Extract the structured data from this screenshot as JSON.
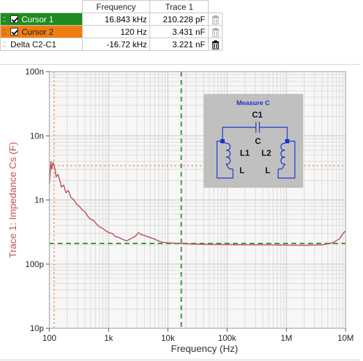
{
  "table": {
    "headers": [
      "Frequency",
      "Trace 1"
    ],
    "rows": [
      {
        "name": "Cursor 1",
        "frequency": "16.843 kHz",
        "trace": "210.228 pF",
        "color": "#1e8c1e",
        "checked": true
      },
      {
        "name": "Cursor 2",
        "frequency": "120 Hz",
        "trace": "3.431 nF",
        "color": "#f07d10",
        "checked": true
      },
      {
        "name": "Delta C2-C1",
        "frequency": "-16.72 kHz",
        "trace": "3.221 nF",
        "color": "#ffffff",
        "checked": false
      }
    ],
    "icons": {
      "delete": "trash-icon",
      "drag": "grip-icon",
      "check": "checkbox-icon"
    }
  },
  "chart_data": {
    "type": "line",
    "x_scale": "log",
    "y_scale": "log",
    "xlim": [
      100,
      10000000
    ],
    "ylim": [
      1e-11,
      1e-07
    ],
    "xlabel": "Frequency (Hz)",
    "ylabel": "Trace 1: Impedance Cs (F)",
    "x_ticks": [
      {
        "value": 100,
        "label": "100"
      },
      {
        "value": 1000,
        "label": "1k"
      },
      {
        "value": 10000,
        "label": "10k"
      },
      {
        "value": 100000,
        "label": "100k"
      },
      {
        "value": 1000000,
        "label": "1M"
      },
      {
        "value": 10000000,
        "label": "10M"
      }
    ],
    "y_ticks": [
      {
        "value": 1e-07,
        "label": "100n"
      },
      {
        "value": 1e-08,
        "label": "10n"
      },
      {
        "value": 1e-09,
        "label": "1n"
      },
      {
        "value": 1e-10,
        "label": "100p"
      },
      {
        "value": 1e-11,
        "label": "10p"
      }
    ],
    "grid": true,
    "series": [
      {
        "color": "#c0505a",
        "x": [
          100,
          103,
          106,
          110,
          115,
          120,
          125,
          130,
          140,
          150,
          160,
          175,
          190,
          210,
          230,
          260,
          290,
          320,
          360,
          400,
          450,
          500,
          560,
          630,
          700,
          800,
          900,
          1000,
          1150,
          1300,
          1500,
          1700,
          2000,
          2400,
          2800,
          3200,
          3500,
          4000,
          5000,
          6000,
          7000,
          8000,
          10000,
          13000,
          16800,
          20000,
          30000,
          50000,
          100000,
          200000,
          500000,
          1000000,
          2000000,
          4000000,
          6000000,
          8000000,
          9000000,
          10000000
        ],
        "y": [
          1.8e-09,
          2.6e-09,
          4e-09,
          3e-09,
          3.8e-09,
          3.43e-09,
          3e-09,
          2.3e-09,
          2.5e-09,
          2e-09,
          1.6e-09,
          1.7e-09,
          1.3e-09,
          1.4e-09,
          1.1e-09,
          1e-09,
          8.5e-10,
          8e-10,
          7e-10,
          6.5e-10,
          5.5e-10,
          5e-10,
          4.8e-10,
          4.2e-10,
          3.8e-10,
          3.6e-10,
          3.3e-10,
          3.1e-10,
          3e-10,
          2.7e-10,
          2.6e-10,
          2.45e-10,
          2.3e-10,
          2.5e-10,
          2.7e-10,
          3.1e-10,
          2.9e-10,
          2.8e-10,
          2.6e-10,
          2.45e-10,
          2.3e-10,
          2.2e-10,
          2.15e-10,
          2.12e-10,
          2.1e-10,
          2.08e-10,
          2.05e-10,
          2.03e-10,
          2.02e-10,
          2e-10,
          2e-10,
          1.98e-10,
          1.97e-10,
          2e-10,
          2.15e-10,
          2.5e-10,
          3e-10,
          3.3e-10
        ]
      }
    ],
    "cursors": [
      {
        "name": "Cursor 1",
        "x": 16843,
        "y": 2.10228e-10,
        "color": "#3a9a3a"
      },
      {
        "name": "Cursor 2",
        "x": 120,
        "y": 3.431e-09,
        "color": "#f0a060"
      }
    ],
    "inset": {
      "title": "Measure C",
      "labels": {
        "top": "C1",
        "center": "C",
        "left_coil": "L1",
        "right_coil": "L2",
        "left_l": "L",
        "right_l": "L"
      }
    }
  }
}
